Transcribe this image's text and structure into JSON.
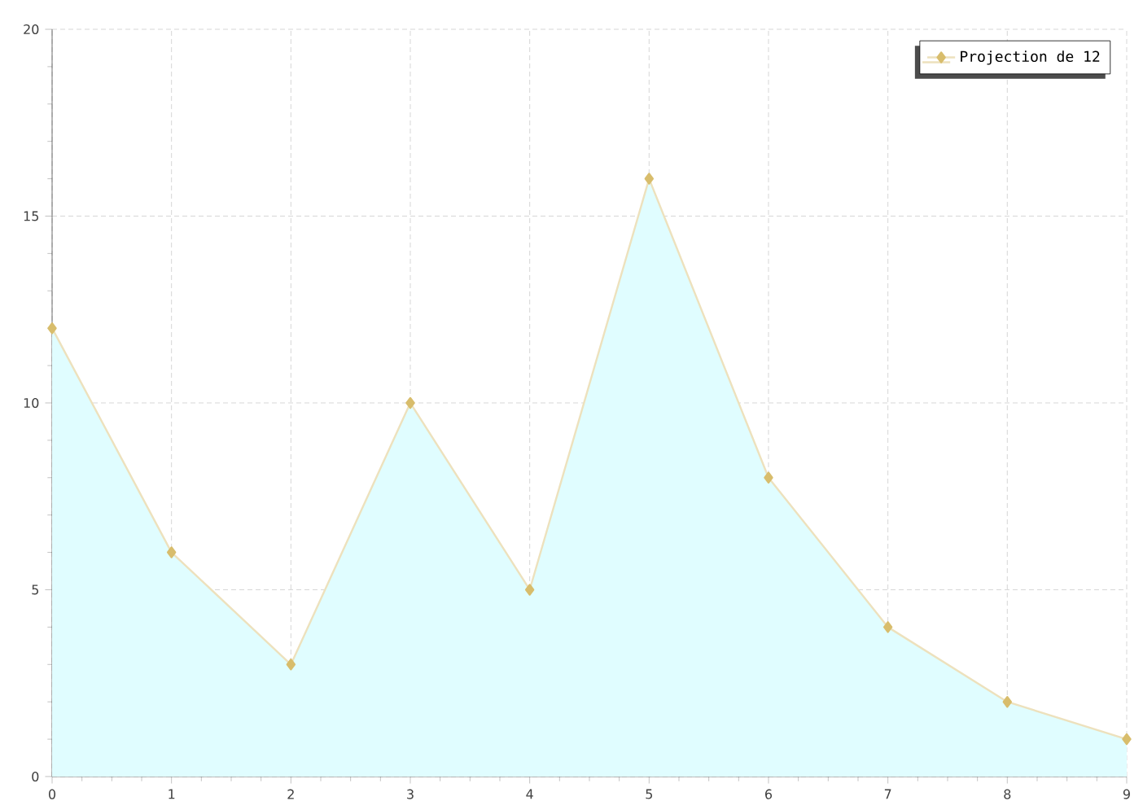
{
  "chart_data": {
    "type": "area",
    "x": [
      0,
      1,
      2,
      3,
      4,
      5,
      6,
      7,
      8,
      9
    ],
    "series": [
      {
        "name": "Projection de 12",
        "color": "#d8bd6c",
        "values": [
          12,
          6,
          3,
          10,
          5,
          16,
          8,
          4,
          2,
          1
        ]
      }
    ],
    "xlim": [
      0,
      9
    ],
    "xticks": [
      0,
      1,
      2,
      3,
      4,
      5,
      6,
      7,
      8,
      9
    ],
    "ylim": [
      0,
      20
    ],
    "yticks": [
      0,
      5,
      10,
      15,
      20
    ],
    "grid": true,
    "legend": "top right",
    "marker": "diamond",
    "line_style": "solid"
  }
}
